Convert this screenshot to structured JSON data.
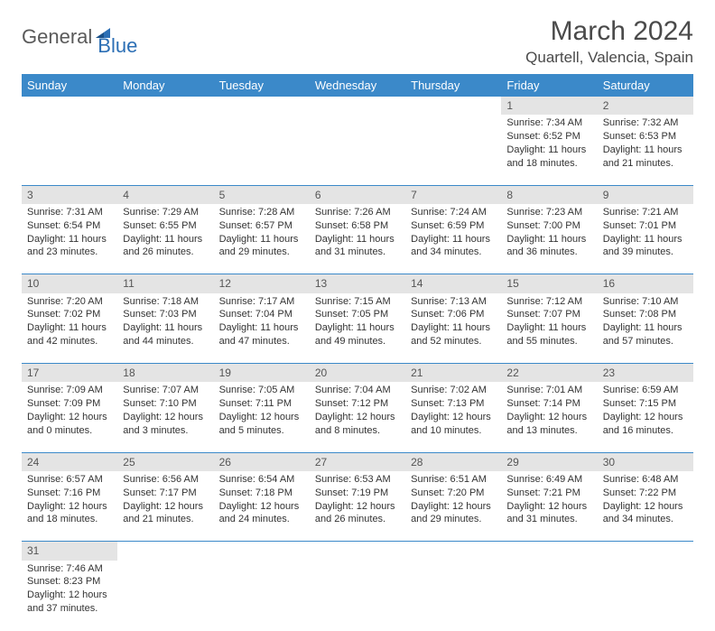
{
  "logo": {
    "text1": "General",
    "text2": "Blue"
  },
  "title": "March 2024",
  "location": "Quartell, Valencia, Spain",
  "headers": [
    "Sunday",
    "Monday",
    "Tuesday",
    "Wednesday",
    "Thursday",
    "Friday",
    "Saturday"
  ],
  "colors": {
    "header_bg": "#3b89c9",
    "header_fg": "#ffffff",
    "daynum_bg": "#e4e4e4",
    "rule": "#3b89c9",
    "logo_blue": "#2c6fb5"
  },
  "weeks": [
    [
      null,
      null,
      null,
      null,
      null,
      {
        "n": "1",
        "sr": "Sunrise: 7:34 AM",
        "ss": "Sunset: 6:52 PM",
        "d1": "Daylight: 11 hours",
        "d2": "and 18 minutes."
      },
      {
        "n": "2",
        "sr": "Sunrise: 7:32 AM",
        "ss": "Sunset: 6:53 PM",
        "d1": "Daylight: 11 hours",
        "d2": "and 21 minutes."
      }
    ],
    [
      {
        "n": "3",
        "sr": "Sunrise: 7:31 AM",
        "ss": "Sunset: 6:54 PM",
        "d1": "Daylight: 11 hours",
        "d2": "and 23 minutes."
      },
      {
        "n": "4",
        "sr": "Sunrise: 7:29 AM",
        "ss": "Sunset: 6:55 PM",
        "d1": "Daylight: 11 hours",
        "d2": "and 26 minutes."
      },
      {
        "n": "5",
        "sr": "Sunrise: 7:28 AM",
        "ss": "Sunset: 6:57 PM",
        "d1": "Daylight: 11 hours",
        "d2": "and 29 minutes."
      },
      {
        "n": "6",
        "sr": "Sunrise: 7:26 AM",
        "ss": "Sunset: 6:58 PM",
        "d1": "Daylight: 11 hours",
        "d2": "and 31 minutes."
      },
      {
        "n": "7",
        "sr": "Sunrise: 7:24 AM",
        "ss": "Sunset: 6:59 PM",
        "d1": "Daylight: 11 hours",
        "d2": "and 34 minutes."
      },
      {
        "n": "8",
        "sr": "Sunrise: 7:23 AM",
        "ss": "Sunset: 7:00 PM",
        "d1": "Daylight: 11 hours",
        "d2": "and 36 minutes."
      },
      {
        "n": "9",
        "sr": "Sunrise: 7:21 AM",
        "ss": "Sunset: 7:01 PM",
        "d1": "Daylight: 11 hours",
        "d2": "and 39 minutes."
      }
    ],
    [
      {
        "n": "10",
        "sr": "Sunrise: 7:20 AM",
        "ss": "Sunset: 7:02 PM",
        "d1": "Daylight: 11 hours",
        "d2": "and 42 minutes."
      },
      {
        "n": "11",
        "sr": "Sunrise: 7:18 AM",
        "ss": "Sunset: 7:03 PM",
        "d1": "Daylight: 11 hours",
        "d2": "and 44 minutes."
      },
      {
        "n": "12",
        "sr": "Sunrise: 7:17 AM",
        "ss": "Sunset: 7:04 PM",
        "d1": "Daylight: 11 hours",
        "d2": "and 47 minutes."
      },
      {
        "n": "13",
        "sr": "Sunrise: 7:15 AM",
        "ss": "Sunset: 7:05 PM",
        "d1": "Daylight: 11 hours",
        "d2": "and 49 minutes."
      },
      {
        "n": "14",
        "sr": "Sunrise: 7:13 AM",
        "ss": "Sunset: 7:06 PM",
        "d1": "Daylight: 11 hours",
        "d2": "and 52 minutes."
      },
      {
        "n": "15",
        "sr": "Sunrise: 7:12 AM",
        "ss": "Sunset: 7:07 PM",
        "d1": "Daylight: 11 hours",
        "d2": "and 55 minutes."
      },
      {
        "n": "16",
        "sr": "Sunrise: 7:10 AM",
        "ss": "Sunset: 7:08 PM",
        "d1": "Daylight: 11 hours",
        "d2": "and 57 minutes."
      }
    ],
    [
      {
        "n": "17",
        "sr": "Sunrise: 7:09 AM",
        "ss": "Sunset: 7:09 PM",
        "d1": "Daylight: 12 hours",
        "d2": "and 0 minutes."
      },
      {
        "n": "18",
        "sr": "Sunrise: 7:07 AM",
        "ss": "Sunset: 7:10 PM",
        "d1": "Daylight: 12 hours",
        "d2": "and 3 minutes."
      },
      {
        "n": "19",
        "sr": "Sunrise: 7:05 AM",
        "ss": "Sunset: 7:11 PM",
        "d1": "Daylight: 12 hours",
        "d2": "and 5 minutes."
      },
      {
        "n": "20",
        "sr": "Sunrise: 7:04 AM",
        "ss": "Sunset: 7:12 PM",
        "d1": "Daylight: 12 hours",
        "d2": "and 8 minutes."
      },
      {
        "n": "21",
        "sr": "Sunrise: 7:02 AM",
        "ss": "Sunset: 7:13 PM",
        "d1": "Daylight: 12 hours",
        "d2": "and 10 minutes."
      },
      {
        "n": "22",
        "sr": "Sunrise: 7:01 AM",
        "ss": "Sunset: 7:14 PM",
        "d1": "Daylight: 12 hours",
        "d2": "and 13 minutes."
      },
      {
        "n": "23",
        "sr": "Sunrise: 6:59 AM",
        "ss": "Sunset: 7:15 PM",
        "d1": "Daylight: 12 hours",
        "d2": "and 16 minutes."
      }
    ],
    [
      {
        "n": "24",
        "sr": "Sunrise: 6:57 AM",
        "ss": "Sunset: 7:16 PM",
        "d1": "Daylight: 12 hours",
        "d2": "and 18 minutes."
      },
      {
        "n": "25",
        "sr": "Sunrise: 6:56 AM",
        "ss": "Sunset: 7:17 PM",
        "d1": "Daylight: 12 hours",
        "d2": "and 21 minutes."
      },
      {
        "n": "26",
        "sr": "Sunrise: 6:54 AM",
        "ss": "Sunset: 7:18 PM",
        "d1": "Daylight: 12 hours",
        "d2": "and 24 minutes."
      },
      {
        "n": "27",
        "sr": "Sunrise: 6:53 AM",
        "ss": "Sunset: 7:19 PM",
        "d1": "Daylight: 12 hours",
        "d2": "and 26 minutes."
      },
      {
        "n": "28",
        "sr": "Sunrise: 6:51 AM",
        "ss": "Sunset: 7:20 PM",
        "d1": "Daylight: 12 hours",
        "d2": "and 29 minutes."
      },
      {
        "n": "29",
        "sr": "Sunrise: 6:49 AM",
        "ss": "Sunset: 7:21 PM",
        "d1": "Daylight: 12 hours",
        "d2": "and 31 minutes."
      },
      {
        "n": "30",
        "sr": "Sunrise: 6:48 AM",
        "ss": "Sunset: 7:22 PM",
        "d1": "Daylight: 12 hours",
        "d2": "and 34 minutes."
      }
    ],
    [
      {
        "n": "31",
        "sr": "Sunrise: 7:46 AM",
        "ss": "Sunset: 8:23 PM",
        "d1": "Daylight: 12 hours",
        "d2": "and 37 minutes."
      },
      null,
      null,
      null,
      null,
      null,
      null
    ]
  ]
}
